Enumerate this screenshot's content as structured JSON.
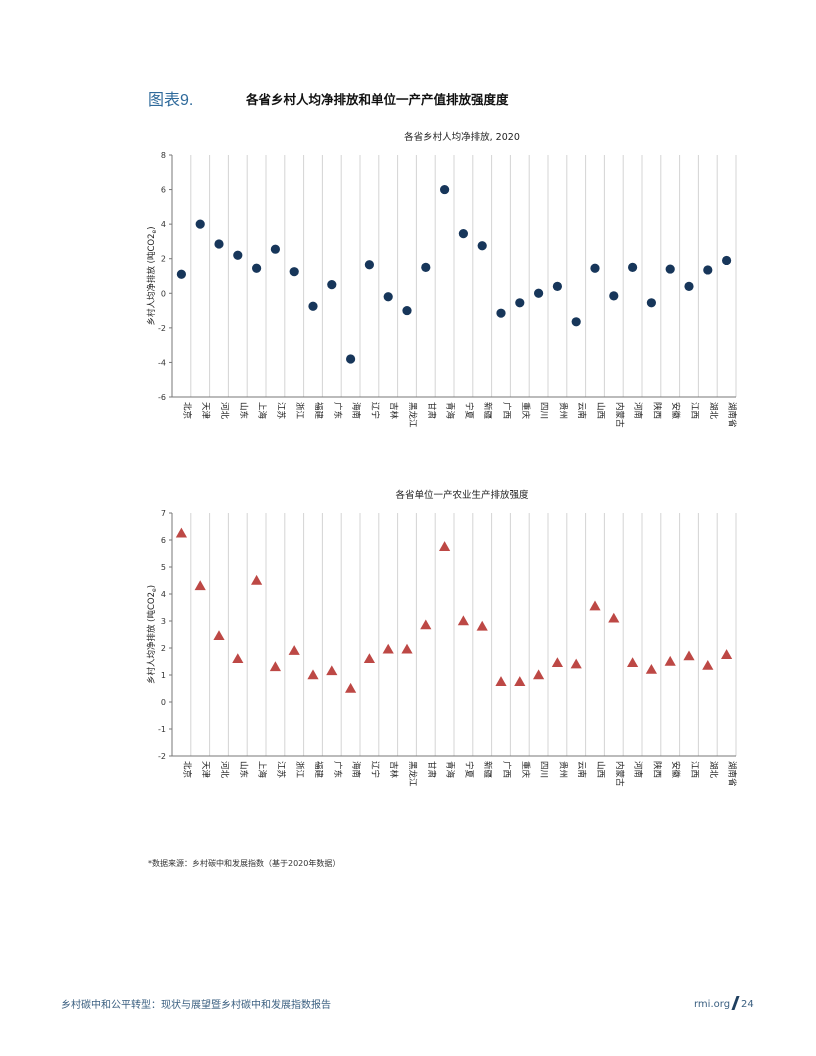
{
  "figure": {
    "label": "图表9.",
    "title": "各省乡村人均净排放和单位一产产值排放强度度"
  },
  "chart_data": [
    {
      "type": "scatter",
      "title": "各省乡村人均净排放, 2020",
      "ylabel": "乡村人均净排放 (吨CO2e)",
      "ylim": [
        -6,
        8
      ],
      "yticks": [
        -6,
        -4,
        -2,
        0,
        2,
        4,
        6,
        8
      ],
      "grid": "vertical",
      "marker": "circle",
      "color": "#17365a",
      "categories": [
        "北京",
        "天津",
        "河北",
        "山东",
        "上海",
        "江苏",
        "浙江",
        "福建",
        "广东",
        "海南",
        "辽宁",
        "吉林",
        "黑龙江",
        "甘肃",
        "青海",
        "宁夏",
        "新疆",
        "广西",
        "重庆",
        "四川",
        "贵州",
        "云南",
        "山西",
        "内蒙古",
        "河南",
        "陕西",
        "安徽",
        "江西",
        "湖北",
        "湖南省"
      ],
      "values": [
        1.1,
        4.0,
        2.85,
        2.2,
        1.45,
        2.55,
        1.25,
        -0.75,
        0.5,
        -3.8,
        1.65,
        -0.2,
        -1.0,
        1.5,
        6.0,
        3.45,
        2.75,
        -1.15,
        -0.55,
        0.0,
        0.4,
        -1.65,
        1.45,
        -0.15,
        1.5,
        -0.55,
        1.4,
        0.4,
        1.35,
        1.9
      ]
    },
    {
      "type": "scatter",
      "title": "各省单位一产农业生产排放强度",
      "ylabel": "乡村人均净排放 (吨CO2e)",
      "ylim": [
        -2,
        7
      ],
      "yticks": [
        -2,
        -1,
        0,
        1,
        2,
        3,
        4,
        5,
        6,
        7
      ],
      "grid": "vertical",
      "marker": "triangle",
      "color": "#bd4845",
      "categories": [
        "北京",
        "天津",
        "河北",
        "山东",
        "上海",
        "江苏",
        "浙江",
        "福建",
        "广东",
        "海南",
        "辽宁",
        "吉林",
        "黑龙江",
        "甘肃",
        "青海",
        "宁夏",
        "新疆",
        "广西",
        "重庆",
        "四川",
        "贵州",
        "云南",
        "山西",
        "内蒙古",
        "河南",
        "陕西",
        "安徽",
        "江西",
        "湖北",
        "湖南省"
      ],
      "values": [
        6.25,
        4.3,
        2.45,
        1.6,
        4.5,
        1.3,
        1.9,
        1.0,
        1.15,
        0.5,
        1.6,
        1.95,
        1.95,
        2.85,
        5.75,
        3.0,
        2.8,
        0.75,
        0.75,
        1.0,
        1.45,
        1.4,
        3.55,
        3.1,
        1.45,
        1.2,
        1.5,
        1.7,
        1.35,
        1.75
      ]
    }
  ],
  "note": "*数据来源：乡村碳中和发展指数（基于2020年数据）",
  "footer": {
    "left": "乡村碳中和公平转型：现状与展望暨乡村碳中和发展指数报告",
    "site": "rmi.org",
    "page": "24"
  }
}
